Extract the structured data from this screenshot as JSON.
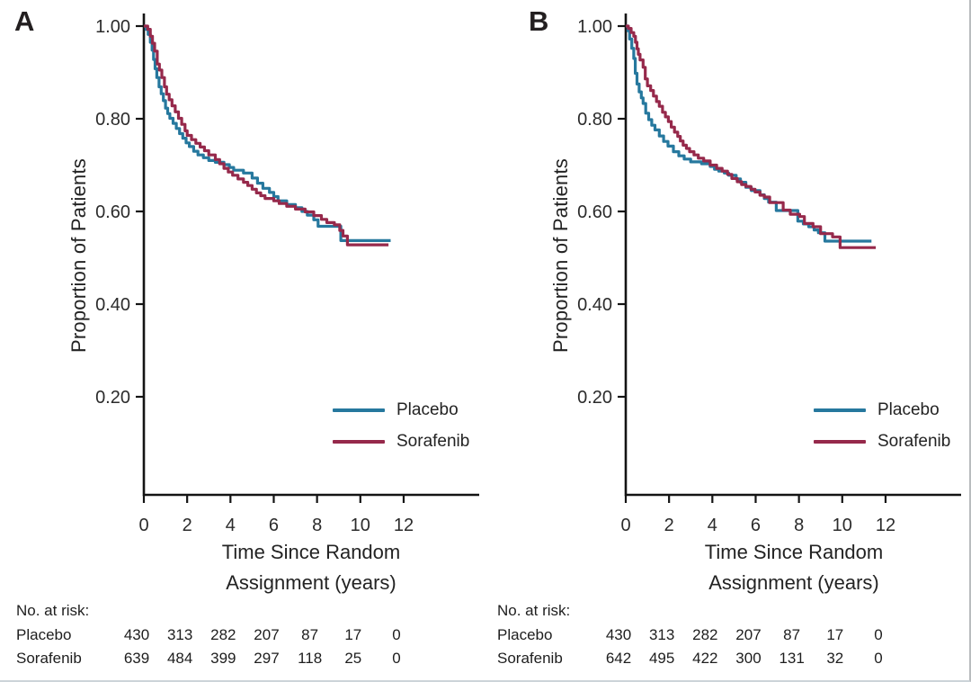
{
  "chart_data": [
    {
      "type": "line",
      "subtype": "kaplan-meier-step",
      "panel": "A",
      "ylabel": "Proportion of Patients",
      "xlabel": "Time Since Random Assignment (years)",
      "xlabel_lines": [
        "Time Since Random",
        "Assignment (years)"
      ],
      "xlim": [
        0,
        13
      ],
      "ylim": [
        0,
        1.0
      ],
      "xticks": [
        0,
        2,
        4,
        6,
        8,
        10,
        12
      ],
      "yticks": [
        1.0,
        0.8,
        0.6,
        0.4,
        0.2
      ],
      "grid": false,
      "legend_position": "lower right",
      "series": [
        {
          "name": "Placebo",
          "color": "#26789E",
          "end_time": 11.4,
          "step_points": [
            [
              0,
              1.0
            ],
            [
              0.1,
              0.993
            ],
            [
              0.2,
              0.982
            ],
            [
              0.3,
              0.965
            ],
            [
              0.38,
              0.948
            ],
            [
              0.45,
              0.928
            ],
            [
              0.52,
              0.908
            ],
            [
              0.6,
              0.889
            ],
            [
              0.7,
              0.869
            ],
            [
              0.8,
              0.854
            ],
            [
              0.9,
              0.839
            ],
            [
              1.0,
              0.823
            ],
            [
              1.1,
              0.811
            ],
            [
              1.2,
              0.801
            ],
            [
              1.35,
              0.79
            ],
            [
              1.5,
              0.779
            ],
            [
              1.65,
              0.768
            ],
            [
              1.8,
              0.758
            ],
            [
              1.95,
              0.748
            ],
            [
              2.1,
              0.74
            ],
            [
              2.3,
              0.73
            ],
            [
              2.5,
              0.722
            ],
            [
              2.75,
              0.716
            ],
            [
              3.0,
              0.71
            ],
            [
              3.3,
              0.706
            ],
            [
              3.7,
              0.701
            ],
            [
              3.95,
              0.695
            ],
            [
              4.15,
              0.689
            ],
            [
              4.6,
              0.683
            ],
            [
              5.0,
              0.672
            ],
            [
              5.25,
              0.661
            ],
            [
              5.5,
              0.65
            ],
            [
              5.8,
              0.641
            ],
            [
              6.0,
              0.632
            ],
            [
              6.2,
              0.623
            ],
            [
              6.6,
              0.615
            ],
            [
              7.0,
              0.608
            ],
            [
              7.3,
              0.6
            ],
            [
              7.55,
              0.592
            ],
            [
              7.85,
              0.582
            ],
            [
              8.05,
              0.568
            ],
            [
              9.1,
              0.537
            ]
          ]
        },
        {
          "name": "Sorafenib",
          "color": "#96294B",
          "end_time": 11.3,
          "step_points": [
            [
              0,
              1.0
            ],
            [
              0.18,
              0.993
            ],
            [
              0.3,
              0.978
            ],
            [
              0.4,
              0.963
            ],
            [
              0.5,
              0.946
            ],
            [
              0.62,
              0.918
            ],
            [
              0.72,
              0.905
            ],
            [
              0.83,
              0.889
            ],
            [
              0.95,
              0.869
            ],
            [
              1.05,
              0.853
            ],
            [
              1.17,
              0.841
            ],
            [
              1.3,
              0.828
            ],
            [
              1.45,
              0.815
            ],
            [
              1.6,
              0.801
            ],
            [
              1.75,
              0.788
            ],
            [
              1.9,
              0.774
            ],
            [
              2.0,
              0.764
            ],
            [
              2.2,
              0.755
            ],
            [
              2.4,
              0.747
            ],
            [
              2.6,
              0.739
            ],
            [
              2.8,
              0.731
            ],
            [
              3.0,
              0.722
            ],
            [
              3.3,
              0.712
            ],
            [
              3.5,
              0.703
            ],
            [
              3.7,
              0.693
            ],
            [
              3.9,
              0.685
            ],
            [
              4.1,
              0.678
            ],
            [
              4.35,
              0.67
            ],
            [
              4.6,
              0.663
            ],
            [
              4.8,
              0.656
            ],
            [
              5.0,
              0.648
            ],
            [
              5.2,
              0.64
            ],
            [
              5.4,
              0.634
            ],
            [
              5.6,
              0.628
            ],
            [
              6.0,
              0.623
            ],
            [
              6.25,
              0.617
            ],
            [
              6.6,
              0.611
            ],
            [
              7.0,
              0.605
            ],
            [
              7.45,
              0.599
            ],
            [
              7.85,
              0.591
            ],
            [
              8.2,
              0.583
            ],
            [
              8.45,
              0.576
            ],
            [
              8.8,
              0.571
            ],
            [
              9.05,
              0.559
            ],
            [
              9.2,
              0.547
            ],
            [
              9.4,
              0.528
            ]
          ]
        }
      ],
      "no_at_risk": {
        "label": "No. at risk:",
        "times": [
          0,
          2,
          4,
          6,
          8,
          10,
          12
        ],
        "rows": [
          {
            "name": "Placebo",
            "counts": [
              430,
              313,
              282,
              207,
              87,
              17,
              0
            ]
          },
          {
            "name": "Sorafenib",
            "counts": [
              639,
              484,
              399,
              297,
              118,
              25,
              0
            ]
          }
        ]
      }
    },
    {
      "type": "line",
      "subtype": "kaplan-meier-step",
      "panel": "B",
      "ylabel": "Proportion of Patients",
      "xlabel": "Time Since Random Assignment (years)",
      "xlabel_lines": [
        "Time Since Random",
        "Assignment (years)"
      ],
      "xlim": [
        0,
        13
      ],
      "ylim": [
        0,
        1.0
      ],
      "xticks": [
        0,
        2,
        4,
        6,
        8,
        10,
        12
      ],
      "yticks": [
        1.0,
        0.8,
        0.6,
        0.4,
        0.2
      ],
      "grid": false,
      "legend_position": "lower right",
      "series": [
        {
          "name": "Placebo",
          "color": "#26789E",
          "end_time": 11.35,
          "step_points": [
            [
              0,
              1.0
            ],
            [
              0.1,
              0.99
            ],
            [
              0.18,
              0.972
            ],
            [
              0.28,
              0.952
            ],
            [
              0.37,
              0.93
            ],
            [
              0.44,
              0.898
            ],
            [
              0.52,
              0.875
            ],
            [
              0.62,
              0.858
            ],
            [
              0.72,
              0.845
            ],
            [
              0.8,
              0.833
            ],
            [
              0.92,
              0.812
            ],
            [
              1.06,
              0.798
            ],
            [
              1.2,
              0.786
            ],
            [
              1.35,
              0.776
            ],
            [
              1.55,
              0.763
            ],
            [
              1.75,
              0.751
            ],
            [
              1.95,
              0.741
            ],
            [
              2.2,
              0.729
            ],
            [
              2.45,
              0.72
            ],
            [
              2.7,
              0.713
            ],
            [
              3.0,
              0.707
            ],
            [
              3.5,
              0.703
            ],
            [
              3.9,
              0.697
            ],
            [
              4.1,
              0.691
            ],
            [
              4.3,
              0.687
            ],
            [
              4.55,
              0.683
            ],
            [
              4.75,
              0.678
            ],
            [
              5.1,
              0.67
            ],
            [
              5.3,
              0.663
            ],
            [
              5.55,
              0.652
            ],
            [
              5.8,
              0.645
            ],
            [
              6.2,
              0.636
            ],
            [
              6.4,
              0.628
            ],
            [
              6.6,
              0.62
            ],
            [
              6.95,
              0.602
            ],
            [
              7.95,
              0.579
            ],
            [
              8.2,
              0.573
            ],
            [
              8.45,
              0.567
            ],
            [
              8.7,
              0.56
            ],
            [
              8.9,
              0.554
            ],
            [
              9.2,
              0.536
            ]
          ]
        },
        {
          "name": "Sorafenib",
          "color": "#96294B",
          "end_time": 11.55,
          "step_points": [
            [
              0,
              1.0
            ],
            [
              0.12,
              0.995
            ],
            [
              0.25,
              0.986
            ],
            [
              0.37,
              0.978
            ],
            [
              0.45,
              0.965
            ],
            [
              0.52,
              0.951
            ],
            [
              0.58,
              0.939
            ],
            [
              0.66,
              0.927
            ],
            [
              0.8,
              0.911
            ],
            [
              0.9,
              0.886
            ],
            [
              1.0,
              0.871
            ],
            [
              1.15,
              0.861
            ],
            [
              1.28,
              0.849
            ],
            [
              1.42,
              0.837
            ],
            [
              1.55,
              0.827
            ],
            [
              1.7,
              0.814
            ],
            [
              1.83,
              0.804
            ],
            [
              1.97,
              0.794
            ],
            [
              2.1,
              0.782
            ],
            [
              2.25,
              0.771
            ],
            [
              2.4,
              0.762
            ],
            [
              2.52,
              0.752
            ],
            [
              2.65,
              0.743
            ],
            [
              2.8,
              0.736
            ],
            [
              2.95,
              0.729
            ],
            [
              3.15,
              0.722
            ],
            [
              3.35,
              0.715
            ],
            [
              3.6,
              0.709
            ],
            [
              3.9,
              0.7
            ],
            [
              4.2,
              0.693
            ],
            [
              4.45,
              0.687
            ],
            [
              4.7,
              0.68
            ],
            [
              4.9,
              0.671
            ],
            [
              5.15,
              0.664
            ],
            [
              5.35,
              0.658
            ],
            [
              5.55,
              0.654
            ],
            [
              5.78,
              0.648
            ],
            [
              5.97,
              0.642
            ],
            [
              6.2,
              0.635
            ],
            [
              6.4,
              0.631
            ],
            [
              6.65,
              0.619
            ],
            [
              7.27,
              0.603
            ],
            [
              7.6,
              0.594
            ],
            [
              8.03,
              0.589
            ],
            [
              8.25,
              0.574
            ],
            [
              8.65,
              0.567
            ],
            [
              9.0,
              0.552
            ],
            [
              9.55,
              0.545
            ],
            [
              9.9,
              0.522
            ]
          ]
        }
      ],
      "no_at_risk": {
        "label": "No. at risk:",
        "times": [
          0,
          2,
          4,
          6,
          8,
          10,
          12
        ],
        "rows": [
          {
            "name": "Placebo",
            "counts": [
              430,
              313,
              282,
              207,
              87,
              17,
              0
            ]
          },
          {
            "name": "Sorafenib",
            "counts": [
              642,
              495,
              422,
              300,
              131,
              32,
              0
            ]
          }
        ]
      }
    }
  ]
}
